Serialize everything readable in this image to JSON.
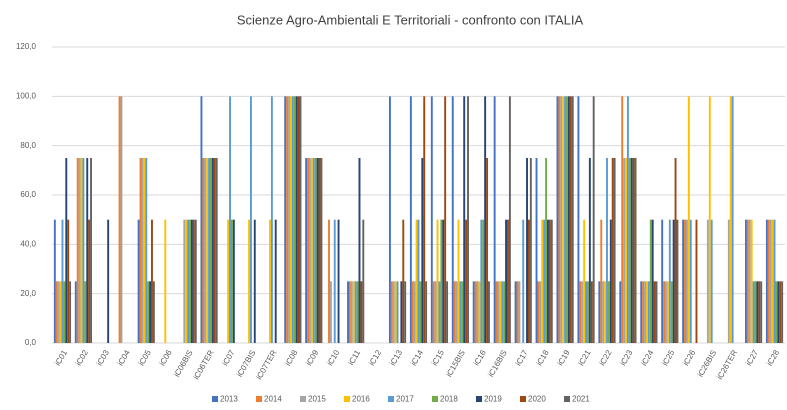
{
  "chart_data": {
    "type": "bar",
    "title": "Scienze Agro-Ambientali E  Territoriali - confronto con ITALIA",
    "categories": [
      "iC01",
      "iC02",
      "iC03",
      "iC04",
      "iC05",
      "iC06",
      "iC06BIS",
      "iC06TER",
      "iC07",
      "iC07BIS",
      "iC07TER",
      "iC08",
      "iC09",
      "iC10",
      "iC11",
      "iC12",
      "iC13",
      "iC14",
      "iC15",
      "iC15BIS",
      "iC16",
      "iC16BIS",
      "iC17",
      "iC18",
      "iC19",
      "iC21",
      "iC22",
      "iC23",
      "iC24",
      "iC25",
      "iC26",
      "iC26BIS",
      "iC26TER",
      "iC27",
      "iC28"
    ],
    "series": [
      {
        "name": "2013",
        "color": "#4472c4",
        "values": [
          50,
          25,
          0,
          0,
          50,
          0,
          0,
          100,
          0,
          0,
          0,
          100,
          75,
          0,
          25,
          0,
          100,
          100,
          100,
          100,
          25,
          100,
          25,
          75,
          100,
          100,
          25,
          25,
          25,
          50,
          50,
          0,
          0,
          50,
          50
        ]
      },
      {
        "name": "2014",
        "color": "#ed7d31",
        "values": [
          25,
          75,
          0,
          100,
          75,
          0,
          0,
          75,
          0,
          0,
          0,
          100,
          75,
          50,
          25,
          0,
          25,
          25,
          25,
          25,
          25,
          25,
          25,
          25,
          100,
          25,
          50,
          100,
          25,
          25,
          50,
          0,
          0,
          50,
          50
        ]
      },
      {
        "name": "2015",
        "color": "#a5a5a5",
        "values": [
          25,
          75,
          0,
          100,
          75,
          0,
          50,
          75,
          0,
          0,
          0,
          100,
          75,
          25,
          25,
          0,
          25,
          25,
          25,
          25,
          25,
          25,
          25,
          25,
          100,
          25,
          25,
          75,
          25,
          25,
          50,
          50,
          50,
          50,
          50
        ]
      },
      {
        "name": "2016",
        "color": "#ffc000",
        "values": [
          25,
          75,
          0,
          0,
          75,
          50,
          50,
          75,
          50,
          50,
          50,
          100,
          75,
          0,
          25,
          0,
          25,
          50,
          50,
          50,
          25,
          25,
          0,
          50,
          100,
          50,
          25,
          75,
          25,
          25,
          100,
          100,
          100,
          50,
          50
        ]
      },
      {
        "name": "2017",
        "color": "#5b9bd5",
        "values": [
          50,
          75,
          0,
          0,
          75,
          0,
          50,
          75,
          100,
          100,
          100,
          100,
          75,
          50,
          25,
          0,
          25,
          50,
          25,
          25,
          50,
          25,
          50,
          50,
          100,
          25,
          75,
          100,
          25,
          50,
          50,
          50,
          100,
          25,
          50
        ]
      },
      {
        "name": "2018",
        "color": "#70ad47",
        "values": [
          25,
          25,
          0,
          0,
          25,
          0,
          50,
          75,
          50,
          0,
          0,
          100,
          75,
          0,
          25,
          0,
          0,
          25,
          50,
          25,
          50,
          25,
          0,
          75,
          100,
          25,
          25,
          75,
          50,
          25,
          0,
          0,
          0,
          25,
          25
        ]
      },
      {
        "name": "2019",
        "color": "#264478",
        "values": [
          75,
          75,
          50,
          0,
          25,
          0,
          50,
          75,
          50,
          50,
          50,
          100,
          75,
          50,
          75,
          0,
          25,
          75,
          50,
          100,
          100,
          50,
          75,
          50,
          100,
          75,
          50,
          75,
          50,
          50,
          0,
          0,
          0,
          25,
          25
        ]
      },
      {
        "name": "2020",
        "color": "#9e480e",
        "values": [
          50,
          50,
          0,
          0,
          50,
          0,
          50,
          75,
          0,
          0,
          0,
          100,
          75,
          0,
          25,
          0,
          50,
          100,
          100,
          50,
          75,
          50,
          50,
          50,
          100,
          25,
          75,
          75,
          25,
          75,
          50,
          0,
          0,
          25,
          25
        ]
      },
      {
        "name": "2021",
        "color": "#636363",
        "values": [
          25,
          75,
          0,
          0,
          25,
          0,
          50,
          75,
          0,
          0,
          0,
          100,
          75,
          0,
          50,
          0,
          25,
          25,
          25,
          100,
          25,
          100,
          75,
          50,
          100,
          100,
          75,
          75,
          25,
          50,
          0,
          0,
          0,
          25,
          25
        ]
      }
    ],
    "ylim": [
      0,
      120
    ],
    "yticks": [
      {
        "value": 0,
        "label": "0,0"
      },
      {
        "value": 20,
        "label": "20,0"
      },
      {
        "value": 40,
        "label": "40,0"
      },
      {
        "value": 60,
        "label": "60,0"
      },
      {
        "value": 80,
        "label": "80,0"
      },
      {
        "value": 100,
        "label": "100,0"
      },
      {
        "value": 120,
        "label": "120,0"
      }
    ],
    "grid": true,
    "legend": "bottom"
  }
}
